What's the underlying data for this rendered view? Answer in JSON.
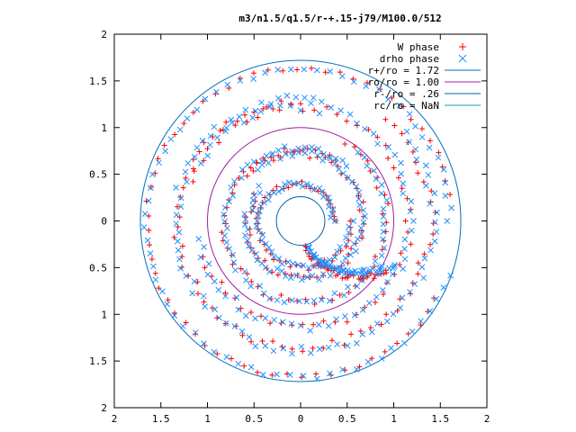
{
  "chart_data": {
    "type": "scatter",
    "title": "m3/n1.5/q1.5/r-+.15-j79/M100.0/512",
    "xlabel": "",
    "ylabel": "",
    "xlim": [
      -2,
      2
    ],
    "ylim": [
      -2,
      2
    ],
    "x_ticks": [
      -2,
      -1.5,
      -1,
      -0.5,
      0,
      0.5,
      1,
      1.5,
      2
    ],
    "y_ticks": [
      -2,
      -1.5,
      -1,
      -0.5,
      0,
      0.5,
      1,
      1.5,
      2
    ],
    "x_tick_labels": [
      "2",
      "1.5",
      "1",
      "0.5",
      "0",
      "0.5",
      "1",
      "1.5",
      "2"
    ],
    "y_tick_labels": [
      "2",
      "1.5",
      "1",
      "0.5",
      "0",
      "0.5",
      "1",
      "1.5",
      "2"
    ],
    "grid": false,
    "legend_position": "top-right",
    "legend": [
      {
        "label": "W phase",
        "symbol": "plus",
        "color": "#ff0000"
      },
      {
        "label": "drho phase",
        "symbol": "cross",
        "color": "#1e90ff"
      },
      {
        "label": "r+/ro = 1.72",
        "symbol": "line",
        "color": "#0070c0"
      },
      {
        "label": "ro/ro = 1.00",
        "symbol": "line",
        "color": "#a020a0"
      },
      {
        "label": "r-/ro = .26",
        "symbol": "line",
        "color": "#0060b0"
      },
      {
        "label": "rc/ro = NaN",
        "symbol": "line",
        "color": "#00a0c8"
      }
    ],
    "circles": [
      {
        "name": "r+/ro",
        "radius": 1.72,
        "color": "#0070c0"
      },
      {
        "name": "ro/ro",
        "radius": 1.0,
        "color": "#a020a0"
      },
      {
        "name": "r-/ro",
        "radius": 0.26,
        "color": "#0060b0"
      },
      {
        "name": "rc/ro",
        "radius": null,
        "color": "#00a0c8"
      }
    ],
    "series": [
      {
        "name": "W phase",
        "color": "#ff0000",
        "marker": "plus",
        "arms": [
          {
            "r0": 1.62,
            "r1": 1.68,
            "t0": 10,
            "t1": 330,
            "n": 60,
            "jitter": 0.03
          },
          {
            "r0": 1.28,
            "r1": 1.42,
            "t0": 90,
            "t1": 410,
            "n": 70,
            "jitter": 0.05
          },
          {
            "r0": 1.1,
            "r1": 1.25,
            "t0": 200,
            "t1": 520,
            "n": 55,
            "jitter": 0.05
          },
          {
            "r0": 0.75,
            "r1": 0.95,
            "t0": 60,
            "t1": 420,
            "n": 60,
            "jitter": 0.04
          },
          {
            "r0": 0.55,
            "r1": 0.75,
            "t0": 150,
            "t1": 500,
            "n": 55,
            "jitter": 0.04
          },
          {
            "r0": 0.35,
            "r1": 0.55,
            "t0": 0,
            "t1": 360,
            "n": 50,
            "jitter": 0.03
          },
          {
            "r0": 0.3,
            "r1": 1.1,
            "t0": 280,
            "t1": 330,
            "n": 45,
            "jitter": 0.05
          }
        ]
      },
      {
        "name": "drho phase",
        "color": "#1e90ff",
        "marker": "cross",
        "arms": [
          {
            "r0": 1.6,
            "r1": 1.7,
            "t0": 0,
            "t1": 340,
            "n": 70,
            "jitter": 0.03
          },
          {
            "r0": 1.3,
            "r1": 1.45,
            "t0": 80,
            "t1": 400,
            "n": 80,
            "jitter": 0.05
          },
          {
            "r0": 1.1,
            "r1": 1.25,
            "t0": 190,
            "t1": 510,
            "n": 65,
            "jitter": 0.05
          },
          {
            "r0": 0.75,
            "r1": 0.95,
            "t0": 50,
            "t1": 410,
            "n": 70,
            "jitter": 0.04
          },
          {
            "r0": 0.55,
            "r1": 0.75,
            "t0": 140,
            "t1": 490,
            "n": 65,
            "jitter": 0.04
          },
          {
            "r0": 0.35,
            "r1": 0.55,
            "t0": 0,
            "t1": 360,
            "n": 55,
            "jitter": 0.03
          },
          {
            "r0": 0.3,
            "r1": 1.1,
            "t0": 285,
            "t1": 335,
            "n": 50,
            "jitter": 0.05
          }
        ]
      }
    ]
  }
}
